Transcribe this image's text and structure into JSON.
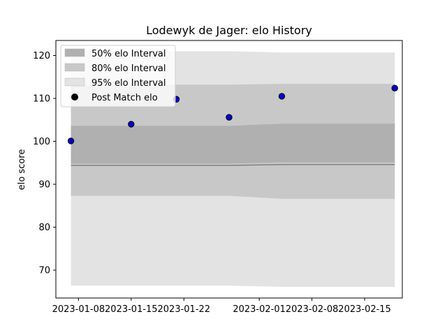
{
  "chart_data": {
    "type": "line",
    "title": "Lodewyk de Jager: elo History",
    "xlabel": "",
    "ylabel": "elo score",
    "x_type": "date",
    "xlim": [
      "2023-01-05",
      "2023-02-20"
    ],
    "ylim": [
      63.5,
      123.5
    ],
    "x_ticks": [
      "2023-01-08",
      "2023-01-15",
      "2023-01-22",
      "2023-02-01",
      "2023-02-08",
      "2023-02-15"
    ],
    "y_ticks": [
      70,
      80,
      90,
      100,
      110,
      120
    ],
    "grid": false,
    "legend_position": "top-left",
    "band_x": [
      "2023-01-07",
      "2023-01-15",
      "2023-01-21",
      "2023-01-28",
      "2023-02-04",
      "2023-02-19"
    ],
    "mean_line": {
      "values": [
        94.4,
        94.4,
        94.4,
        94.4,
        94.6,
        94.6
      ],
      "color": "#808080"
    },
    "series": [
      {
        "name": "50% elo Interval",
        "type": "band",
        "color": "#b0b0b0",
        "lower": [
          94.8,
          94.8,
          94.8,
          94.8,
          95.1,
          95.1
        ],
        "upper": [
          103.6,
          103.6,
          103.6,
          103.6,
          104.1,
          104.1
        ]
      },
      {
        "name": "80% elo Interval",
        "type": "band",
        "color": "#c8c8c8",
        "lower": [
          87.3,
          87.3,
          87.3,
          87.3,
          86.6,
          86.6
        ],
        "upper": [
          113.2,
          113.2,
          113.2,
          113.2,
          113.4,
          113.4
        ]
      },
      {
        "name": "95% elo Interval",
        "type": "band",
        "color": "#e3e3e3",
        "lower": [
          66.4,
          66.4,
          66.4,
          66.4,
          66.1,
          66.1
        ],
        "upper": [
          121,
          121,
          121,
          121,
          120.7,
          120.7
        ]
      },
      {
        "name": "Post Match elo",
        "type": "scatter",
        "color": "#0000cc",
        "x": [
          "2023-01-07",
          "2023-01-15",
          "2023-01-21",
          "2023-01-28",
          "2023-02-04",
          "2023-02-19"
        ],
        "values": [
          100.1,
          104.0,
          109.8,
          105.6,
          110.5,
          112.4
        ]
      }
    ]
  }
}
